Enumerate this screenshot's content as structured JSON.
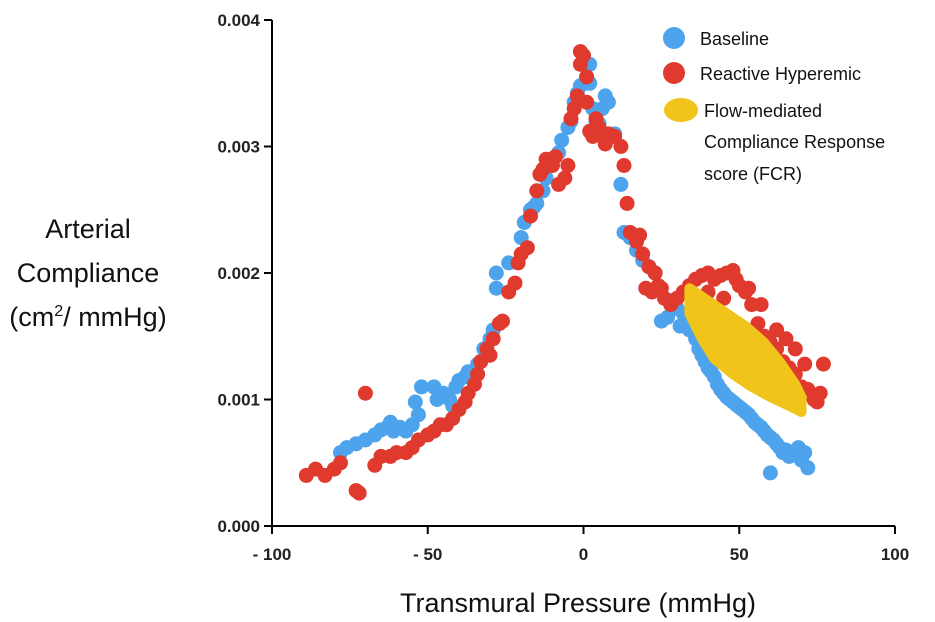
{
  "chart_data": {
    "type": "scatter",
    "xlabel": "Transmural Pressure  (mmHg)",
    "ylabel_lines": [
      "Arterial",
      "Compliance",
      "(cm",
      "2",
      "/ mmHg)"
    ],
    "xlim": [
      -100,
      100
    ],
    "ylim": [
      0.0,
      0.004
    ],
    "x_ticks": [
      -100,
      -50,
      0,
      50,
      100
    ],
    "x_tick_labels": [
      "- 100",
      "- 50",
      "0",
      "50",
      "100"
    ],
    "y_ticks": [
      0.0,
      0.001,
      0.002,
      0.003,
      0.004
    ],
    "y_tick_labels": [
      "0.000",
      "0.001",
      "0.002",
      "0.003",
      "0.004"
    ],
    "grid": false,
    "legend_position": "top-right",
    "legend": [
      {
        "label": "Baseline",
        "color": "#4da3ec"
      },
      {
        "label": "Reactive Hyperemic",
        "color": "#e03a2f"
      },
      {
        "label_lines": [
          "Flow-mediated",
          "Compliance Response",
          "score (FCR)"
        ],
        "color": "#f0c419"
      }
    ],
    "series": [
      {
        "name": "Baseline",
        "color": "#4da3ec",
        "points": [
          [
            -78,
            0.00058
          ],
          [
            -76,
            0.00062
          ],
          [
            -73,
            0.00065
          ],
          [
            -70,
            0.00068
          ],
          [
            -67,
            0.00072
          ],
          [
            -65,
            0.00076
          ],
          [
            -63,
            0.00078
          ],
          [
            -62,
            0.00082
          ],
          [
            -61,
            0.00075
          ],
          [
            -59,
            0.00078
          ],
          [
            -57,
            0.00075
          ],
          [
            -55,
            0.0008
          ],
          [
            -53,
            0.00088
          ],
          [
            -54,
            0.00098
          ],
          [
            -52,
            0.0011
          ],
          [
            -48,
            0.0011
          ],
          [
            -47,
            0.001
          ],
          [
            -45,
            0.00105
          ],
          [
            -43,
            0.001
          ],
          [
            -42,
            0.00095
          ],
          [
            -41,
            0.0011
          ],
          [
            -40,
            0.00115
          ],
          [
            -38,
            0.00118
          ],
          [
            -37,
            0.00122
          ],
          [
            -36,
            0.0012
          ],
          [
            -34,
            0.00128
          ],
          [
            -33,
            0.0013
          ],
          [
            -32,
            0.0014
          ],
          [
            -30,
            0.00148
          ],
          [
            -29,
            0.00155
          ],
          [
            -28,
            0.00188
          ],
          [
            -28,
            0.002
          ],
          [
            -24,
            0.00208
          ],
          [
            -20,
            0.00228
          ],
          [
            -19,
            0.0024
          ],
          [
            -17,
            0.0025
          ],
          [
            -16,
            0.00252
          ],
          [
            -15,
            0.00255
          ],
          [
            -13,
            0.00265
          ],
          [
            -12,
            0.00275
          ],
          [
            -10,
            0.00285
          ],
          [
            -8,
            0.00295
          ],
          [
            -7,
            0.00305
          ],
          [
            -5,
            0.00315
          ],
          [
            -4,
            0.0032
          ],
          [
            -3,
            0.00335
          ],
          [
            -2,
            0.00342
          ],
          [
            -1,
            0.00348
          ],
          [
            1,
            0.00355
          ],
          [
            2,
            0.00365
          ],
          [
            2,
            0.0035
          ],
          [
            3,
            0.0033
          ],
          [
            4,
            0.0032
          ],
          [
            5,
            0.00318
          ],
          [
            6,
            0.0033
          ],
          [
            7,
            0.0034
          ],
          [
            8,
            0.00335
          ],
          [
            10,
            0.0031
          ],
          [
            12,
            0.0027
          ],
          [
            13,
            0.00232
          ],
          [
            15,
            0.00228
          ],
          [
            17,
            0.00218
          ],
          [
            19,
            0.0021
          ],
          [
            21,
            0.00205
          ],
          [
            23,
            0.002
          ],
          [
            25,
            0.00162
          ],
          [
            27,
            0.00165
          ],
          [
            28,
            0.00178
          ],
          [
            30,
            0.00172
          ],
          [
            31,
            0.00158
          ],
          [
            32,
            0.00168
          ],
          [
            33,
            0.00162
          ],
          [
            34,
            0.00155
          ],
          [
            36,
            0.00148
          ],
          [
            37,
            0.0014
          ],
          [
            38,
            0.00135
          ],
          [
            39,
            0.0013
          ],
          [
            40,
            0.00125
          ],
          [
            41,
            0.00122
          ],
          [
            42,
            0.00118
          ],
          [
            43,
            0.00112
          ],
          [
            44,
            0.00108
          ],
          [
            45,
            0.00105
          ],
          [
            46,
            0.00102
          ],
          [
            47,
            0.001
          ],
          [
            48,
            0.00098
          ],
          [
            49,
            0.00096
          ],
          [
            50,
            0.00094
          ],
          [
            51,
            0.00092
          ],
          [
            52,
            0.0009
          ],
          [
            53,
            0.00088
          ],
          [
            54,
            0.00085
          ],
          [
            55,
            0.00082
          ],
          [
            56,
            0.0008
          ],
          [
            57,
            0.00078
          ],
          [
            58,
            0.00075
          ],
          [
            59,
            0.00072
          ],
          [
            60,
            0.0007
          ],
          [
            61,
            0.00068
          ],
          [
            62,
            0.00065
          ],
          [
            63,
            0.00062
          ],
          [
            64,
            0.00058
          ],
          [
            65,
            0.0006
          ],
          [
            66,
            0.00055
          ],
          [
            67,
            0.00058
          ],
          [
            68,
            0.00056
          ],
          [
            69,
            0.00062
          ],
          [
            70,
            0.00052
          ],
          [
            71,
            0.00058
          ],
          [
            72,
            0.00046
          ],
          [
            60,
            0.00042
          ]
        ]
      },
      {
        "name": "Reactive Hyperemic",
        "color": "#e03a2f",
        "points": [
          [
            -89,
            0.0004
          ],
          [
            -86,
            0.00045
          ],
          [
            -83,
            0.0004
          ],
          [
            -80,
            0.00045
          ],
          [
            -78,
            0.0005
          ],
          [
            -73,
            0.00028
          ],
          [
            -72,
            0.00026
          ],
          [
            -70,
            0.00105
          ],
          [
            -67,
            0.00048
          ],
          [
            -65,
            0.00055
          ],
          [
            -62,
            0.00055
          ],
          [
            -60,
            0.00058
          ],
          [
            -57,
            0.00058
          ],
          [
            -55,
            0.00062
          ],
          [
            -53,
            0.00068
          ],
          [
            -50,
            0.00072
          ],
          [
            -48,
            0.00075
          ],
          [
            -46,
            0.0008
          ],
          [
            -44,
            0.0008
          ],
          [
            -42,
            0.00085
          ],
          [
            -40,
            0.00092
          ],
          [
            -38,
            0.00098
          ],
          [
            -37,
            0.00105
          ],
          [
            -35,
            0.00112
          ],
          [
            -34,
            0.0012
          ],
          [
            -33,
            0.0013
          ],
          [
            -31,
            0.0014
          ],
          [
            -30,
            0.00135
          ],
          [
            -29,
            0.00148
          ],
          [
            -27,
            0.0016
          ],
          [
            -26,
            0.00162
          ],
          [
            -24,
            0.00185
          ],
          [
            -22,
            0.00192
          ],
          [
            -21,
            0.00208
          ],
          [
            -20,
            0.00215
          ],
          [
            -18,
            0.0022
          ],
          [
            -17,
            0.00245
          ],
          [
            -15,
            0.00265
          ],
          [
            -14,
            0.00278
          ],
          [
            -13,
            0.00282
          ],
          [
            -12,
            0.0029
          ],
          [
            -10,
            0.00285
          ],
          [
            -9,
            0.00292
          ],
          [
            -8,
            0.0027
          ],
          [
            -6,
            0.00275
          ],
          [
            -5,
            0.00285
          ],
          [
            -4,
            0.00322
          ],
          [
            -3,
            0.0033
          ],
          [
            -2,
            0.0034
          ],
          [
            -1,
            0.00365
          ],
          [
            -1,
            0.00375
          ],
          [
            0,
            0.00372
          ],
          [
            1,
            0.00355
          ],
          [
            1,
            0.00335
          ],
          [
            2,
            0.00312
          ],
          [
            3,
            0.00308
          ],
          [
            4,
            0.00322
          ],
          [
            5,
            0.00315
          ],
          [
            6,
            0.0031
          ],
          [
            7,
            0.00302
          ],
          [
            8,
            0.0031
          ],
          [
            10,
            0.00308
          ],
          [
            12,
            0.003
          ],
          [
            13,
            0.00285
          ],
          [
            14,
            0.00255
          ],
          [
            15,
            0.00232
          ],
          [
            17,
            0.00225
          ],
          [
            19,
            0.00215
          ],
          [
            21,
            0.00205
          ],
          [
            23,
            0.002
          ],
          [
            24,
            0.0019
          ],
          [
            25,
            0.00188
          ],
          [
            26,
            0.0018
          ],
          [
            28,
            0.00175
          ],
          [
            30,
            0.0018
          ],
          [
            32,
            0.00185
          ],
          [
            34,
            0.0019
          ],
          [
            36,
            0.00195
          ],
          [
            38,
            0.00198
          ],
          [
            40,
            0.002
          ],
          [
            42,
            0.00195
          ],
          [
            44,
            0.00198
          ],
          [
            46,
            0.002
          ],
          [
            48,
            0.00202
          ],
          [
            50,
            0.0019
          ],
          [
            52,
            0.00185
          ],
          [
            54,
            0.00175
          ],
          [
            56,
            0.0016
          ],
          [
            58,
            0.0015
          ],
          [
            60,
            0.00145
          ],
          [
            62,
            0.0014
          ],
          [
            64,
            0.0013
          ],
          [
            66,
            0.00125
          ],
          [
            68,
            0.0012
          ],
          [
            70,
            0.0011
          ],
          [
            72,
            0.00108
          ],
          [
            74,
            0.001
          ],
          [
            75,
            0.00098
          ],
          [
            76,
            0.00105
          ],
          [
            77,
            0.00128
          ],
          [
            18,
            0.0023
          ],
          [
            22,
            0.00185
          ],
          [
            20,
            0.00188
          ],
          [
            35,
            0.00175
          ],
          [
            40,
            0.00185
          ],
          [
            45,
            0.0018
          ],
          [
            49,
            0.00195
          ],
          [
            53,
            0.00188
          ],
          [
            57,
            0.00175
          ],
          [
            62,
            0.00155
          ],
          [
            65,
            0.00148
          ],
          [
            68,
            0.0014
          ],
          [
            71,
            0.00128
          ]
        ]
      }
    ],
    "fcr_region": {
      "name": "Flow-mediated Compliance Response score (FCR)",
      "color": "#f0c419",
      "upper": [
        [
          34,
          0.00188
        ],
        [
          40,
          0.00178
        ],
        [
          46,
          0.00168
        ],
        [
          52,
          0.00158
        ],
        [
          58,
          0.00145
        ],
        [
          63,
          0.0013
        ],
        [
          68,
          0.00112
        ],
        [
          70,
          0.00102
        ]
      ],
      "lower": [
        [
          70,
          0.0009
        ],
        [
          66,
          0.00095
        ],
        [
          60,
          0.00102
        ],
        [
          54,
          0.0011
        ],
        [
          48,
          0.0012
        ],
        [
          42,
          0.00132
        ],
        [
          38,
          0.00148
        ],
        [
          34,
          0.00168
        ]
      ]
    }
  }
}
